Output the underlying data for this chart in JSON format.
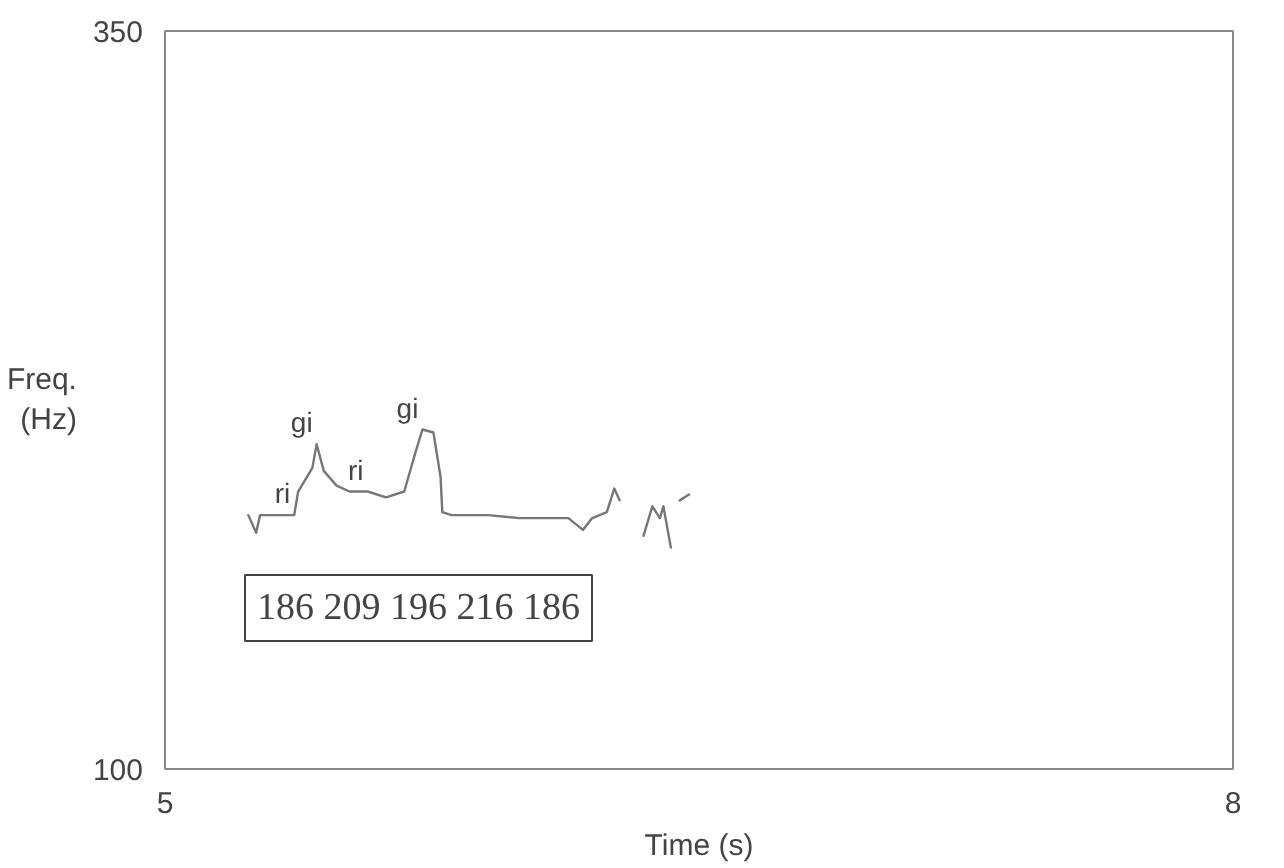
{
  "chart_data": {
    "type": "line",
    "xlabel": "Time (s)",
    "ylabel": "Freq.\n(Hz)",
    "xlim": [
      5,
      8
    ],
    "ylim": [
      100,
      350
    ],
    "xticks": [
      5,
      8
    ],
    "yticks": [
      100,
      350
    ],
    "marker": "none",
    "line_style": "solid",
    "x": [
      5.234,
      5.256,
      5.267,
      5.363,
      5.374,
      5.414,
      5.426,
      5.446,
      5.482,
      5.518,
      5.569,
      5.621,
      5.672,
      5.703,
      5.723,
      5.754,
      5.774,
      5.779,
      5.805,
      5.841,
      5.908,
      5.995,
      6.133,
      6.174,
      6.2,
      6.241,
      6.262,
      6.277,
      6.31,
      6.344,
      6.369,
      6.39,
      6.4,
      6.421,
      6.43,
      6.446,
      6.472
    ],
    "series": [
      {
        "color": "#777777",
        "values": [
          186,
          180,
          186,
          186,
          194,
          202,
          210,
          201,
          196,
          194,
          194,
          192,
          194,
          207,
          215,
          214,
          199,
          187,
          186,
          186,
          186,
          185,
          185,
          181,
          185,
          187,
          195,
          191,
          null,
          179,
          189,
          185,
          189,
          175,
          null,
          191,
          193
        ]
      }
    ],
    "annotations": [
      {
        "text": "ri",
        "x": 5.363,
        "y": 186
      },
      {
        "text": "gi",
        "x": 5.426,
        "y": 210
      },
      {
        "text": "ri",
        "x": 5.569,
        "y": 194
      },
      {
        "text": "gi",
        "x": 5.723,
        "y": 215
      },
      "186 209 196 216 186"
    ]
  }
}
